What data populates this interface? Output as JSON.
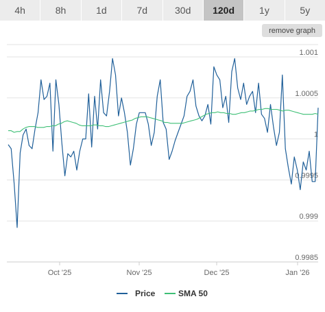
{
  "tabs": [
    {
      "label": "4h",
      "active": false
    },
    {
      "label": "8h",
      "active": false
    },
    {
      "label": "1d",
      "active": false
    },
    {
      "label": "7d",
      "active": false
    },
    {
      "label": "30d",
      "active": false
    },
    {
      "label": "120d",
      "active": true
    },
    {
      "label": "1y",
      "active": false
    },
    {
      "label": "5y",
      "active": false
    }
  ],
  "remove_graph_label": "remove graph",
  "chart_data": {
    "type": "line",
    "ylim": [
      0.9985,
      1.00115
    ],
    "y_ticks": [
      0.9985,
      0.999,
      0.9995,
      1,
      1.0005,
      1.001
    ],
    "y_tick_labels": [
      "0.9985",
      "0.999",
      "0.9995",
      "1",
      "1.0005",
      "1.001"
    ],
    "x_tick_labels": [
      "Oct '25",
      "Nov '25",
      "Dec '25",
      "Jan '26"
    ],
    "grid": true,
    "legend_position": "bottom",
    "series": [
      {
        "name": "Price",
        "color": "#1f5f99",
        "values": [
          0.99993,
          0.99988,
          0.99945,
          0.99892,
          0.99983,
          1.00005,
          1.00012,
          0.99992,
          0.99988,
          1.00012,
          1.00032,
          1.00072,
          1.00048,
          1.00052,
          1.00068,
          0.99985,
          1.00072,
          1.00042,
          0.99995,
          0.99955,
          0.99982,
          0.99978,
          0.99985,
          0.99962,
          0.99985,
          1,
          1,
          1.00055,
          0.9999,
          1.00052,
          1.00012,
          1.00072,
          1.00032,
          1.00028,
          1.00058,
          1.00098,
          1.00078,
          1.00028,
          1.0005,
          1.00032,
          1.00008,
          0.99968,
          0.99988,
          1.00018,
          1.00032,
          1.00032,
          1.00032,
          1.00018,
          0.99992,
          1.00008,
          1.00052,
          1.00072,
          1.0002,
          1.00012,
          0.99975,
          0.99985,
          0.99998,
          1.00008,
          1.00018,
          1.00028,
          1.00052,
          1.00058,
          1.00072,
          1.0004,
          1.00028,
          1.00022,
          1.00028,
          1.00042,
          1.00018,
          1.00088,
          1.00078,
          1.00072,
          1.00038,
          1.00052,
          1.0002,
          1.00082,
          1.00098,
          1.00062,
          1.00048,
          1.00068,
          1.00042,
          1.00052,
          1.00058,
          1.00032,
          1.00068,
          1.0003,
          1.00025,
          1.00008,
          1.00042,
          1.00015,
          0.99992,
          1.00008,
          1.00078,
          0.99988,
          0.99965,
          0.99945,
          0.99978,
          0.99962,
          0.99938,
          0.99972,
          0.99962,
          0.99985,
          0.99948,
          0.99948,
          1.00038
        ],
        "x_positions_note": ""
      },
      {
        "name": "SMA 50",
        "color": "#3dbf75",
        "values": [
          1.0001,
          1.0001,
          1.00008,
          1.00009,
          1.00009,
          1.00012,
          1.00014,
          1.00015,
          1.00015,
          1.00015,
          1.00014,
          1.00014,
          1.00014,
          1.00015,
          1.00015,
          1.00016,
          1.00016,
          1.00018,
          1.00019,
          1.00021,
          1.00022,
          1.00021,
          1.0002,
          1.00019,
          1.00017,
          1.00016,
          1.00016,
          1.00016,
          1.00016,
          1.00017,
          1.00017,
          1.00016,
          1.00016,
          1.00015,
          1.00015,
          1.00016,
          1.00017,
          1.00018,
          1.00019,
          1.0002,
          1.00021,
          1.00022,
          1.00023,
          1.00025,
          1.00026,
          1.00027,
          1.00027,
          1.00027,
          1.00026,
          1.00025,
          1.00024,
          1.00023,
          1.00022,
          1.0002,
          1.0002,
          1.00019,
          1.00019,
          1.00019,
          1.00019,
          1.00019,
          1.0002,
          1.00021,
          1.00022,
          1.00023,
          1.00024,
          1.00026,
          1.00028,
          1.0003,
          1.00031,
          1.00032,
          1.00032,
          1.00033,
          1.00032,
          1.00032,
          1.00031,
          1.00031,
          1.0003,
          1.0003,
          1.00031,
          1.00032,
          1.00032,
          1.00033,
          1.00034,
          1.00034,
          1.00035,
          1.00036,
          1.00036,
          1.00037,
          1.00037,
          1.00036,
          1.00036,
          1.00036,
          1.00035,
          1.00034,
          1.00035,
          1.00035,
          1.00034,
          1.00033,
          1.00032,
          1.00031,
          1.0003,
          1.0003,
          1.0003,
          1.0003,
          1.00031,
          1.0003
        ]
      }
    ]
  }
}
